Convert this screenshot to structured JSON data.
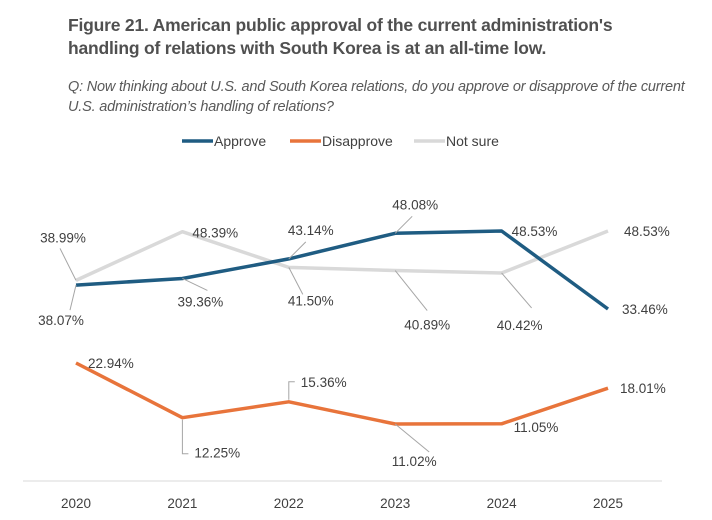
{
  "header": {
    "title": "Figure 21. American public approval of the current administration's handling of relations with South Korea is at an all-time low.",
    "question": "Q: Now thinking about U.S. and South Korea relations, do you approve or disapprove of the current U.S. administration’s handling of relations?"
  },
  "chart_data": {
    "type": "line",
    "title": "Figure 21. American public approval of the current administration's handling of relations with South Korea is at an all-time low.",
    "subtitle": "Q: Now thinking about U.S. and South Korea relations, do you approve or disapprove of the current U.S. administration’s handling of relations?",
    "xlabel": "",
    "ylabel": "",
    "x": [
      "2020",
      "2021",
      "2022",
      "2023",
      "2024",
      "2025"
    ],
    "series": [
      {
        "name": "Approve",
        "color": "#1F5C82",
        "values": [
          38.07,
          39.36,
          43.14,
          48.08,
          48.53,
          33.46
        ],
        "labels": [
          "38.07%",
          "39.36%",
          "43.14%",
          "48.08%",
          "48.53%",
          "33.46%"
        ]
      },
      {
        "name": "Disapprove",
        "color": "#E8743B",
        "values": [
          22.94,
          12.25,
          15.36,
          11.02,
          11.05,
          18.01
        ],
        "labels": [
          "22.94%",
          "12.25%",
          "15.36%",
          "11.02%",
          "11.05%",
          "18.01%"
        ]
      },
      {
        "name": "Not sure",
        "color": "#D9D9D9",
        "values": [
          38.99,
          48.39,
          41.5,
          40.89,
          40.42,
          48.53
        ],
        "labels": [
          "38.99%",
          "48.39%",
          "41.50%",
          "40.89%",
          "40.42%",
          "48.53%"
        ]
      }
    ],
    "ylim": [
      0,
      55
    ],
    "y_axis_visible": false,
    "grid": false,
    "legend": "top-center"
  }
}
